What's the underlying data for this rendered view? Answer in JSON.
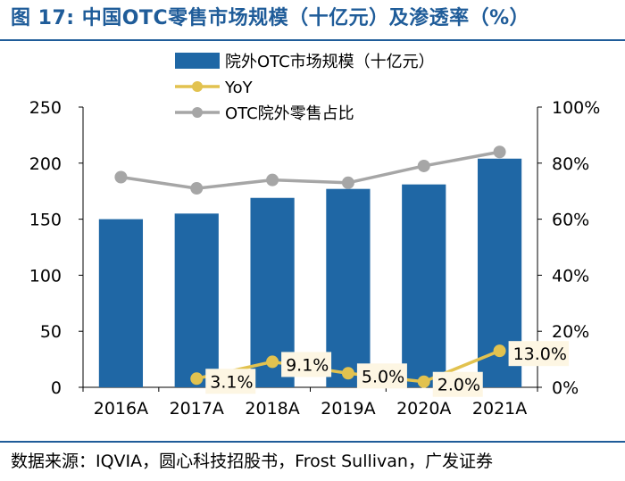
{
  "title": "图  17: 中国OTC零售市场规模（十亿元）及渗透率（%）",
  "source": "数据来源：IQVIA，圆心科技招股书，Frost Sullivan，广发证券",
  "colors": {
    "bar": "#1f67a5",
    "yoy": "#e2c24f",
    "share": "#a6a6a6",
    "label_bg": "#fdf6e3",
    "title": "#1f5c99"
  },
  "chart_data": {
    "type": "bar",
    "categories": [
      "2016A",
      "2017A",
      "2018A",
      "2019A",
      "2020A",
      "2021A"
    ],
    "series": [
      {
        "name": "院外OTC市场规模（十亿元）",
        "kind": "bar",
        "axis": "left",
        "values": [
          150,
          155,
          169,
          177,
          181,
          204
        ]
      },
      {
        "name": "YoY",
        "kind": "line",
        "axis": "right",
        "values": [
          null,
          3.1,
          9.1,
          5.0,
          2.0,
          13.0
        ],
        "labels": [
          "",
          "3.1%",
          "9.1%",
          "5.0%",
          "2.0%",
          "13.0%"
        ]
      },
      {
        "name": "OTC院外零售占比",
        "kind": "line",
        "axis": "right",
        "values": [
          75,
          71,
          74,
          73,
          79,
          84
        ]
      }
    ],
    "y_left": {
      "min": 0,
      "max": 250,
      "ticks": [
        "0",
        "50",
        "100",
        "150",
        "200",
        "250"
      ]
    },
    "y_right": {
      "min": 0,
      "max": 100,
      "ticks": [
        "0%",
        "20%",
        "40%",
        "60%",
        "80%",
        "100%"
      ]
    },
    "legend": "top-center",
    "grid": false
  }
}
